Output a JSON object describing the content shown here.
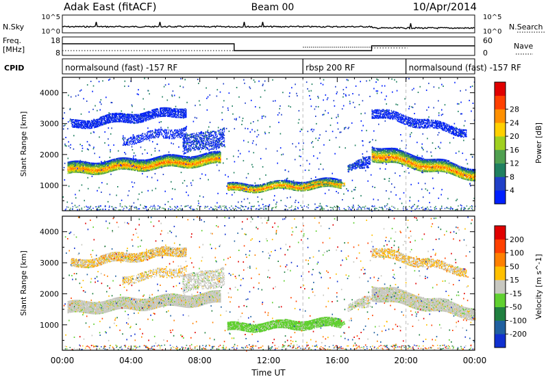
{
  "header": {
    "title": "Adak East (fitACF)",
    "beam": "Beam 00",
    "date": "10/Apr/2014"
  },
  "noise_panel": {
    "left_label": "N.Sky",
    "right_label": "N.Search",
    "left_ticks": [
      "10^5",
      "10^0"
    ],
    "right_ticks": [
      "10^5",
      "10^0"
    ]
  },
  "freq_panel": {
    "left_label_1": "Freq.",
    "left_label_2": "[MHz]",
    "left_ticks": [
      "18",
      "8"
    ],
    "right_label": "Nave",
    "right_ticks": [
      "60",
      "0"
    ]
  },
  "cpid_panel": {
    "label": "CPID",
    "segments": [
      {
        "start_h": 0,
        "end_h": 14,
        "text": "normalsound (fast) -157 RF"
      },
      {
        "start_h": 14,
        "end_h": 20,
        "text": "rbsp 200 RF"
      },
      {
        "start_h": 20,
        "end_h": 24,
        "text": "normalsound (fast) -157 RF"
      }
    ]
  },
  "chart_data": {
    "type": "heatmap",
    "x_range_hours": [
      0,
      24
    ],
    "x_ticks": [
      "00:00",
      "04:00",
      "08:00",
      "12:00",
      "16:00",
      "20:00",
      "00:00"
    ],
    "xlabel": "Time UT",
    "ylabel": "Slant Range [km]",
    "ylim": [
      180,
      4500
    ],
    "y_ticks": [
      1000,
      2000,
      3000,
      4000
    ],
    "boundaries_hours": [
      14,
      20
    ],
    "power_panel": {
      "colorbar_label": "Power [dB]",
      "colorbar_ticks": [
        "4",
        "8",
        "12",
        "16",
        "20",
        "24",
        "28"
      ],
      "colors": [
        "#0020ff",
        "#2040c8",
        "#208060",
        "#50a050",
        "#a0d020",
        "#ffd000",
        "#ff9000",
        "#ff4000",
        "#e00000"
      ]
    },
    "velocity_panel": {
      "colorbar_label": "Velocity [m s^-1]",
      "colorbar_ticks": [
        "200",
        "100",
        "50",
        "15",
        "-15",
        "-50",
        "-100",
        "-200"
      ],
      "colors": [
        "#1030d0",
        "#2060a0",
        "#208040",
        "#60d030",
        "#c8c8c0",
        "#ffc000",
        "#ff8000",
        "#ff4000",
        "#e00000"
      ]
    }
  }
}
